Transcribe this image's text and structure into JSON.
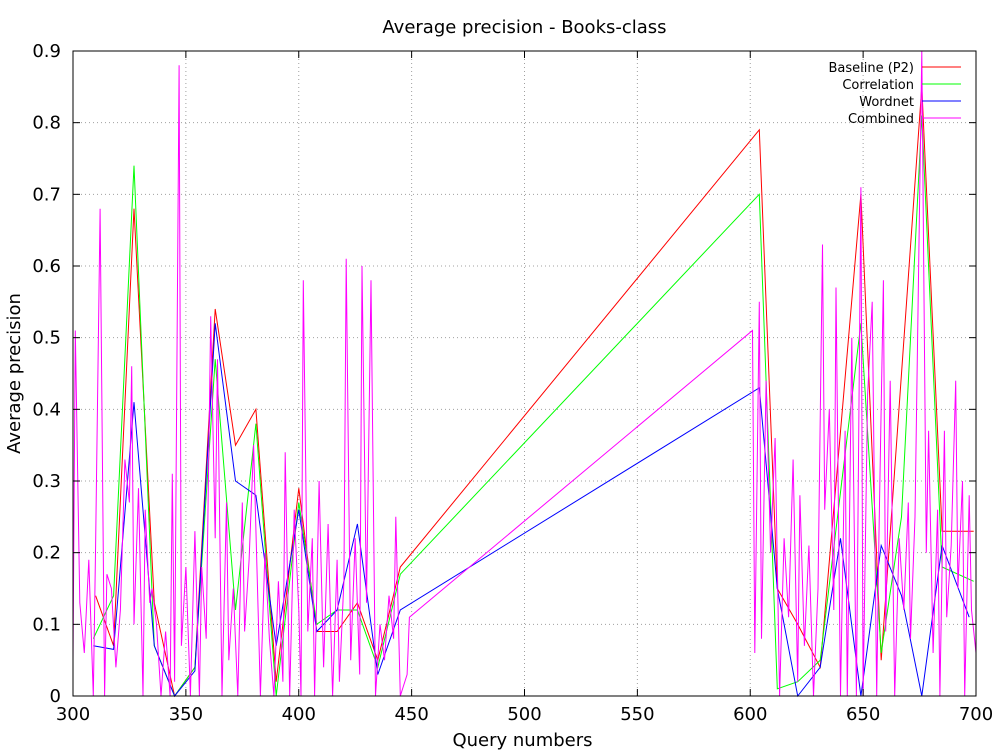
{
  "chart_data": {
    "type": "line",
    "title": "Average precision - Books-class",
    "xlabel": "Query numbers",
    "ylabel": "Average precision",
    "xlim": [
      300,
      700
    ],
    "ylim": [
      0,
      0.9
    ],
    "x_ticks": [
      300,
      350,
      400,
      450,
      500,
      550,
      600,
      650,
      700
    ],
    "x_tick_labels": [
      "300",
      "350",
      "400",
      "450",
      "500",
      "550",
      "600",
      "650",
      "700"
    ],
    "y_ticks": [
      0,
      0.1,
      0.2,
      0.3,
      0.4,
      0.5,
      0.6,
      0.7,
      0.8,
      0.9
    ],
    "y_tick_labels": [
      "0",
      "0.1",
      "0.2",
      "0.3",
      "0.4",
      "0.5",
      "0.6",
      "0.7",
      "0.8",
      "0.9"
    ],
    "grid": true,
    "legend_position": "top-right",
    "series": [
      {
        "name": "Baseline (P2)",
        "color": "#ff0000",
        "points": [
          [
            310,
            0.14
          ],
          [
            318,
            0.07
          ],
          [
            327,
            0.68
          ],
          [
            336,
            0.13
          ],
          [
            345,
            0.0
          ],
          [
            354,
            0.04
          ],
          [
            363,
            0.54
          ],
          [
            372,
            0.35
          ],
          [
            381,
            0.4
          ],
          [
            390,
            0.02
          ],
          [
            400,
            0.29
          ],
          [
            408,
            0.09
          ],
          [
            417,
            0.09
          ],
          [
            426,
            0.13
          ],
          [
            435,
            0.05
          ],
          [
            445,
            0.18
          ],
          [
            604,
            0.79
          ],
          [
            612,
            0.15
          ],
          [
            621,
            0.1
          ],
          [
            631,
            0.04
          ],
          [
            649,
            0.7
          ],
          [
            658,
            0.05
          ],
          [
            676,
            0.85
          ],
          [
            685,
            0.23
          ],
          [
            699,
            0.23
          ]
        ]
      },
      {
        "name": "Correlation",
        "color": "#00ff00",
        "points": [
          [
            309,
            0.08
          ],
          [
            318,
            0.14
          ],
          [
            327,
            0.74
          ],
          [
            336,
            0.07
          ],
          [
            345,
            0.0
          ],
          [
            354,
            0.04
          ],
          [
            363,
            0.47
          ],
          [
            372,
            0.12
          ],
          [
            381,
            0.38
          ],
          [
            390,
            0.0
          ],
          [
            400,
            0.27
          ],
          [
            408,
            0.1
          ],
          [
            417,
            0.12
          ],
          [
            426,
            0.12
          ],
          [
            435,
            0.04
          ],
          [
            445,
            0.17
          ],
          [
            604,
            0.7
          ],
          [
            612,
            0.01
          ],
          [
            621,
            0.02
          ],
          [
            631,
            0.05
          ],
          [
            649,
            0.52
          ],
          [
            658,
            0.06
          ],
          [
            667,
            0.25
          ],
          [
            676,
            0.81
          ],
          [
            685,
            0.18
          ],
          [
            699,
            0.16
          ]
        ]
      },
      {
        "name": "Wordnet",
        "color": "#0000ff",
        "points": [
          [
            309,
            0.07
          ],
          [
            318,
            0.065
          ],
          [
            327,
            0.41
          ],
          [
            336,
            0.07
          ],
          [
            345,
            0.0
          ],
          [
            354,
            0.035
          ],
          [
            363,
            0.52
          ],
          [
            372,
            0.3
          ],
          [
            381,
            0.28
          ],
          [
            390,
            0.07
          ],
          [
            400,
            0.26
          ],
          [
            408,
            0.09
          ],
          [
            417,
            0.12
          ],
          [
            426,
            0.24
          ],
          [
            435,
            0.03
          ],
          [
            445,
            0.12
          ],
          [
            604,
            0.43
          ],
          [
            612,
            0.15
          ],
          [
            621,
            0.0
          ],
          [
            631,
            0.04
          ],
          [
            640,
            0.22
          ],
          [
            649,
            0.0
          ],
          [
            658,
            0.21
          ],
          [
            667,
            0.14
          ],
          [
            676,
            0.0
          ],
          [
            685,
            0.21
          ],
          [
            697,
            0.11
          ]
        ]
      },
      {
        "name": "Combined",
        "color": "#ff00ff",
        "points": [
          [
            300,
            0.05
          ],
          [
            301,
            0.51
          ],
          [
            303,
            0.13
          ],
          [
            305,
            0.06
          ],
          [
            307,
            0.19
          ],
          [
            309,
            0.0
          ],
          [
            310,
            0.21
          ],
          [
            312,
            0.68
          ],
          [
            314,
            0.0
          ],
          [
            315,
            0.17
          ],
          [
            317,
            0.15
          ],
          [
            319,
            0.04
          ],
          [
            321,
            0.12
          ],
          [
            323,
            0.33
          ],
          [
            325,
            0.27
          ],
          [
            326,
            0.46
          ],
          [
            327,
            0.1
          ],
          [
            329,
            0.29
          ],
          [
            331,
            0.0
          ],
          [
            332,
            0.26
          ],
          [
            334,
            0.13
          ],
          [
            335,
            0.15
          ],
          [
            337,
            0.1
          ],
          [
            339,
            0.0
          ],
          [
            341,
            0.09
          ],
          [
            343,
            0.0
          ],
          [
            344,
            0.31
          ],
          [
            345,
            0.02
          ],
          [
            347,
            0.88
          ],
          [
            348,
            0.07
          ],
          [
            350,
            0.18
          ],
          [
            352,
            0.0
          ],
          [
            354,
            0.23
          ],
          [
            356,
            0.0
          ],
          [
            357,
            0.18
          ],
          [
            359,
            0.08
          ],
          [
            361,
            0.53
          ],
          [
            363,
            0.22
          ],
          [
            364,
            0.47
          ],
          [
            366,
            0.0
          ],
          [
            368,
            0.27
          ],
          [
            369,
            0.05
          ],
          [
            371,
            0.15
          ],
          [
            373,
            0.0
          ],
          [
            375,
            0.27
          ],
          [
            376,
            0.09
          ],
          [
            378,
            0.19
          ],
          [
            380,
            0.35
          ],
          [
            382,
            0.12
          ],
          [
            383,
            0.0
          ],
          [
            385,
            0.2
          ],
          [
            387,
            0.08
          ],
          [
            389,
            0.0
          ],
          [
            391,
            0.16
          ],
          [
            393,
            0.02
          ],
          [
            394,
            0.34
          ],
          [
            396,
            0.0
          ],
          [
            398,
            0.26
          ],
          [
            400,
            0.12
          ],
          [
            401,
            0.0
          ],
          [
            402,
            0.58
          ],
          [
            404,
            0.09
          ],
          [
            406,
            0.22
          ],
          [
            407,
            0.0
          ],
          [
            409,
            0.3
          ],
          [
            411,
            0.04
          ],
          [
            413,
            0.24
          ],
          [
            415,
            0.0
          ],
          [
            417,
            0.19
          ],
          [
            418,
            0.02
          ],
          [
            420,
            0.16
          ],
          [
            421,
            0.61
          ],
          [
            423,
            0.05
          ],
          [
            425,
            0.22
          ],
          [
            427,
            0.03
          ],
          [
            428,
            0.6
          ],
          [
            430,
            0.13
          ],
          [
            432,
            0.58
          ],
          [
            434,
            0.0
          ],
          [
            436,
            0.1
          ],
          [
            438,
            0.05
          ],
          [
            440,
            0.14
          ],
          [
            442,
            0.08
          ],
          [
            443,
            0.25
          ],
          [
            445,
            0.0
          ],
          [
            448,
            0.03
          ],
          [
            449,
            0.11
          ],
          [
            601,
            0.51
          ],
          [
            602,
            0.06
          ],
          [
            604,
            0.55
          ],
          [
            605,
            0.08
          ],
          [
            607,
            0.44
          ],
          [
            609,
            0.2
          ],
          [
            611,
            0.36
          ],
          [
            613,
            0.0
          ],
          [
            615,
            0.22
          ],
          [
            617,
            0.11
          ],
          [
            619,
            0.33
          ],
          [
            621,
            0.02
          ],
          [
            622,
            0.28
          ],
          [
            624,
            0.07
          ],
          [
            626,
            0.21
          ],
          [
            628,
            0.0
          ],
          [
            630,
            0.15
          ],
          [
            632,
            0.63
          ],
          [
            633,
            0.26
          ],
          [
            635,
            0.4
          ],
          [
            637,
            0.12
          ],
          [
            638,
            0.57
          ],
          [
            640,
            0.0
          ],
          [
            642,
            0.37
          ],
          [
            643,
            0.0
          ],
          [
            645,
            0.5
          ],
          [
            647,
            0.0
          ],
          [
            649,
            0.71
          ],
          [
            650,
            0.0
          ],
          [
            652,
            0.42
          ],
          [
            654,
            0.55
          ],
          [
            656,
            0.0
          ],
          [
            657,
            0.22
          ],
          [
            659,
            0.58
          ],
          [
            660,
            0.09
          ],
          [
            662,
            0.44
          ],
          [
            664,
            0.0
          ],
          [
            666,
            0.22
          ],
          [
            668,
            0.12
          ],
          [
            670,
            0.27
          ],
          [
            671,
            0.08
          ],
          [
            673,
            0.25
          ],
          [
            675,
            0.69
          ],
          [
            676,
            0.9
          ],
          [
            678,
            0.2
          ],
          [
            679,
            0.37
          ],
          [
            681,
            0.06
          ],
          [
            683,
            0.26
          ],
          [
            684,
            0.0
          ],
          [
            686,
            0.37
          ],
          [
            687,
            0.11
          ],
          [
            689,
            0.21
          ],
          [
            691,
            0.44
          ],
          [
            692,
            0.15
          ],
          [
            694,
            0.3
          ],
          [
            695,
            0.0
          ],
          [
            697,
            0.28
          ],
          [
            698,
            0.12
          ],
          [
            700,
            0.06
          ]
        ]
      }
    ]
  }
}
